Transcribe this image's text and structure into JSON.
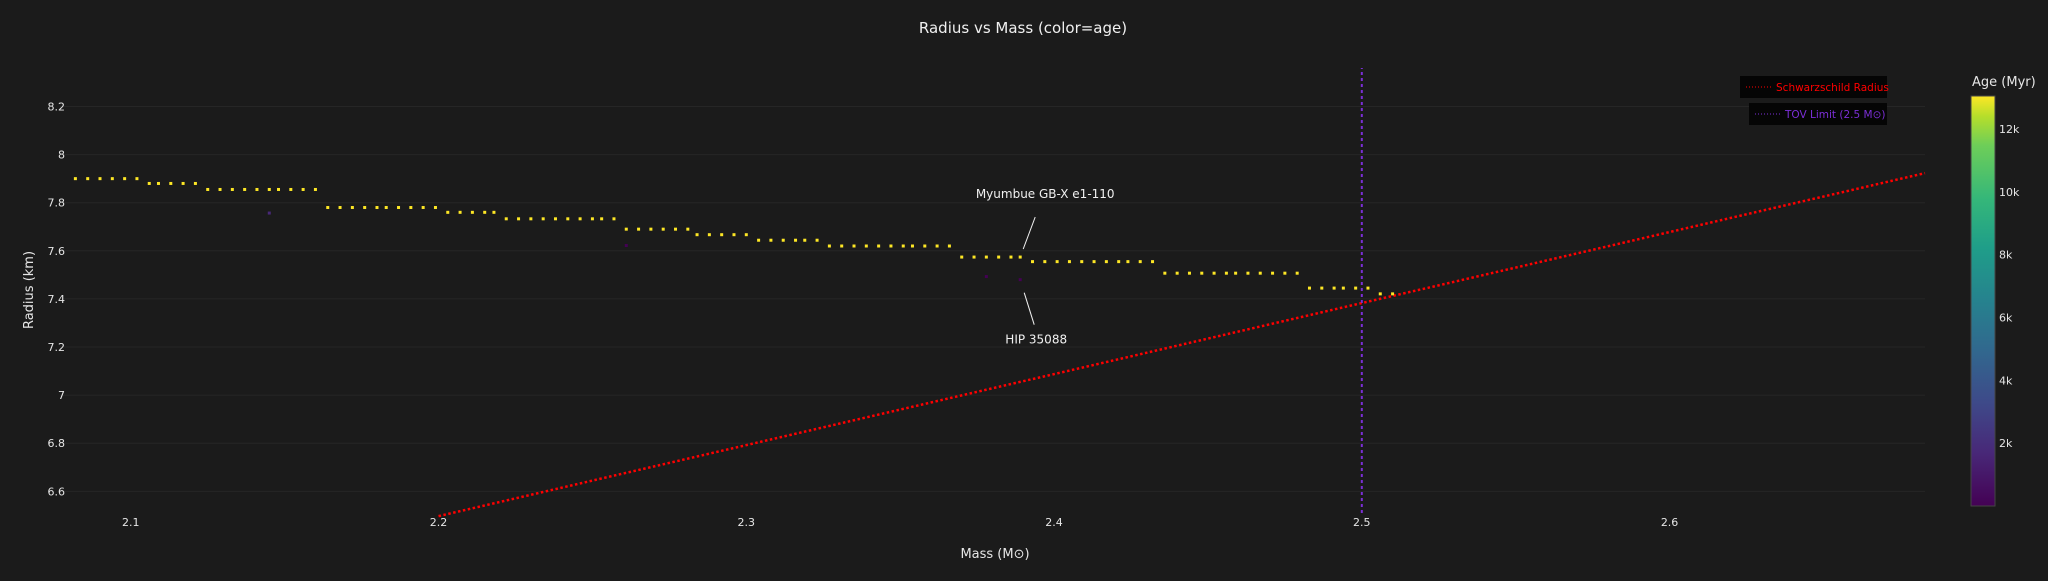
{
  "chart_data": {
    "type": "scatter",
    "title": "Radius vs Mass (color=age)",
    "xlabel": "Mass (M⊙)",
    "ylabel": "Radius (km)",
    "xlim": [
      2.077,
      2.683
    ],
    "ylim": [
      6.51,
      8.36
    ],
    "xticks": [
      2.1,
      2.2,
      2.3,
      2.4,
      2.5,
      2.6
    ],
    "xtick_labels": [
      "2.1",
      "2.2",
      "2.3",
      "2.4",
      "2.5",
      "2.6"
    ],
    "yticks": [
      6.6,
      6.8,
      7,
      7.2,
      7.4,
      7.6,
      7.8,
      8,
      8.2
    ],
    "ytick_labels": [
      "6.6",
      "6.8",
      "7",
      "7.2",
      "7.4",
      "7.6",
      "7.8",
      "8",
      "8.2"
    ],
    "grid": true,
    "background": "#1b1b1b",
    "point_rows": [
      {
        "radius": 7.9,
        "age": 12900,
        "mass": [
          2.082,
          2.086,
          2.09,
          2.094,
          2.098,
          2.102
        ]
      },
      {
        "radius": 7.88,
        "age": 12900,
        "mass": [
          2.106,
          2.109,
          2.113,
          2.117,
          2.121
        ]
      },
      {
        "radius": 7.855,
        "age": 12900,
        "mass": [
          2.125,
          2.129,
          2.133,
          2.137,
          2.141,
          2.145,
          2.148,
          2.152,
          2.156,
          2.16
        ]
      },
      {
        "radius": 7.78,
        "age": 12900,
        "mass": [
          2.164,
          2.168,
          2.172,
          2.176,
          2.18,
          2.183,
          2.187,
          2.191,
          2.195,
          2.199
        ]
      },
      {
        "radius": 7.76,
        "age": 12900,
        "mass": [
          2.203,
          2.207,
          2.211,
          2.215,
          2.218
        ]
      },
      {
        "radius": 7.733,
        "age": 12900,
        "mass": [
          2.222,
          2.226,
          2.23,
          2.234,
          2.238,
          2.242,
          2.246,
          2.25,
          2.253,
          2.257
        ]
      },
      {
        "radius": 7.69,
        "age": 12900,
        "mass": [
          2.261,
          2.265,
          2.269,
          2.273,
          2.277,
          2.281
        ]
      },
      {
        "radius": 7.667,
        "age": 12900,
        "mass": [
          2.284,
          2.288,
          2.292,
          2.296,
          2.3
        ]
      },
      {
        "radius": 7.644,
        "age": 12900,
        "mass": [
          2.304,
          2.308,
          2.312,
          2.316,
          2.319,
          2.323
        ]
      },
      {
        "radius": 7.62,
        "age": 12900,
        "mass": [
          2.327,
          2.331,
          2.335,
          2.339,
          2.343,
          2.347,
          2.351,
          2.354,
          2.358,
          2.362,
          2.366
        ]
      },
      {
        "radius": 7.574,
        "age": 12900,
        "mass": [
          2.37,
          2.374,
          2.378,
          2.382,
          2.386,
          2.389
        ]
      },
      {
        "radius": 7.555,
        "age": 12900,
        "mass": [
          2.393,
          2.397,
          2.401,
          2.405,
          2.409,
          2.413,
          2.417,
          2.421,
          2.424,
          2.428,
          2.432
        ]
      },
      {
        "radius": 7.507,
        "age": 12900,
        "mass": [
          2.436,
          2.44,
          2.444,
          2.448,
          2.452,
          2.456,
          2.459,
          2.463,
          2.467,
          2.471,
          2.475,
          2.479
        ]
      },
      {
        "radius": 7.445,
        "age": 12900,
        "mass": [
          2.483,
          2.487,
          2.491,
          2.494,
          2.498,
          2.502
        ]
      },
      {
        "radius": 7.421,
        "age": 12900,
        "mass": [
          2.506,
          2.51
        ]
      }
    ],
    "young_points": [
      {
        "mass": 2.145,
        "radius": 7.757,
        "age": 1800
      },
      {
        "mass": 2.261,
        "radius": 7.622,
        "age": 400
      },
      {
        "mass": 2.378,
        "radius": 7.493,
        "age": 400
      },
      {
        "mass": 2.389,
        "radius": 7.48,
        "age": 600
      }
    ],
    "lines": [
      {
        "name": "Schwarzschild Radius",
        "color": "#ff0000",
        "style": "dotted",
        "x": [
          2.2,
          2.683
        ],
        "y": [
          6.497,
          7.923
        ]
      },
      {
        "name": "TOV Limit (2.5 M⊙)",
        "color": "#7b2fd6",
        "style": "dotted",
        "x": [
          2.5,
          2.5
        ],
        "y": [
          6.51,
          8.36
        ]
      }
    ],
    "legend": {
      "position": "top-right",
      "entries": [
        "Schwarzschild Radius",
        "TOV Limit (2.5 M⊙)"
      ]
    },
    "annotations": [
      {
        "text": "Myumbue GB-X e1-110",
        "mass": 2.389,
        "radius": 7.574
      },
      {
        "text": "HIP 35088",
        "mass": 2.389,
        "radius": 7.48
      }
    ],
    "colorbar": {
      "title": "Age (Myr)",
      "colorscale": "viridis",
      "range": [
        0,
        13050
      ],
      "ticks": [
        2000,
        4000,
        6000,
        8000,
        10000,
        12000
      ],
      "tick_labels": [
        "2k",
        "4k",
        "6k",
        "8k",
        "10k",
        "12k"
      ]
    }
  }
}
